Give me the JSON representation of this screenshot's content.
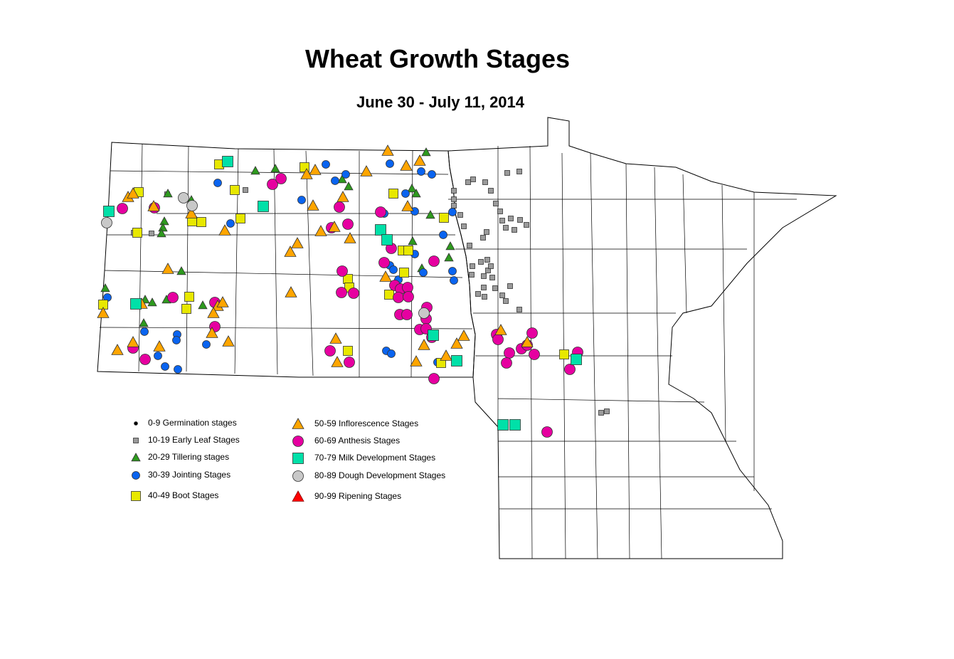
{
  "title": "Wheat Growth Stages",
  "subtitle": "June 30 - July 11, 2014",
  "legend": [
    {
      "code": "G",
      "label": "0-9 Germination stages",
      "shape": "dot",
      "color": "#000000"
    },
    {
      "code": "L",
      "label": "10-19 Early Leaf Stages",
      "shape": "square",
      "color": "#9A9A9A"
    },
    {
      "code": "T",
      "label": "20-29 Tillering stages",
      "shape": "triangle",
      "color": "#2E9A1E"
    },
    {
      "code": "J",
      "label": "30-39 Jointing Stages",
      "shape": "circle",
      "color": "#0A64F0"
    },
    {
      "code": "B",
      "label": "40-49 Boot Stages",
      "shape": "square",
      "color": "#E8E800"
    },
    {
      "code": "I",
      "label": "50-59 Inflorescence Stages",
      "shape": "triangle",
      "color": "#FFA500"
    },
    {
      "code": "A",
      "label": "60-69 Anthesis Stages",
      "shape": "circle",
      "color": "#E600A0"
    },
    {
      "code": "M",
      "label": "70-79 Milk Development Stages",
      "shape": "square",
      "color": "#00E0A8"
    },
    {
      "code": "D",
      "label": "80-89 Dough Development Stages",
      "shape": "circle",
      "color": "#C8C8C8"
    },
    {
      "code": "R",
      "label": "90-99 Ripening Stages",
      "shape": "triangle",
      "color": "#FF0000"
    }
  ]
}
